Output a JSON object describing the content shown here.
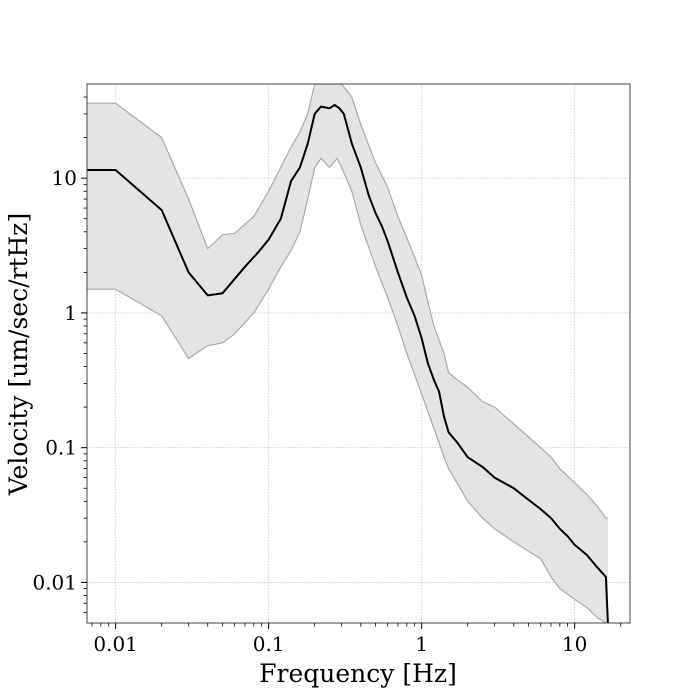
{
  "chart_data": {
    "type": "line",
    "xlabel": "Frequency [Hz]",
    "ylabel": "Velocity [um/sec/rtHz]",
    "xscale": "log",
    "yscale": "log",
    "xlim": [
      0.0065,
      23
    ],
    "ylim": [
      0.005,
      50
    ],
    "grid": true,
    "x_ticks": [
      {
        "value": 0.01,
        "label": "0.01"
      },
      {
        "value": 0.1,
        "label": "0.1"
      },
      {
        "value": 1,
        "label": "1"
      },
      {
        "value": 10,
        "label": "10"
      }
    ],
    "y_ticks": [
      {
        "value": 0.01,
        "label": "0.01"
      },
      {
        "value": 0.1,
        "label": "0.1"
      },
      {
        "value": 1,
        "label": "1"
      },
      {
        "value": 10,
        "label": "10"
      }
    ],
    "colors": {
      "median_line": "#000000",
      "band_fill": "#e4e4e4",
      "band_edge": "#aaaaaa"
    },
    "series": [
      {
        "role": "median",
        "x": [
          0.0065,
          0.01,
          0.02,
          0.03,
          0.04,
          0.05,
          0.07,
          0.085,
          0.1,
          0.12,
          0.14,
          0.16,
          0.18,
          0.2,
          0.22,
          0.25,
          0.27,
          0.29,
          0.31,
          0.35,
          0.4,
          0.45,
          0.5,
          0.55,
          0.6,
          0.7,
          0.8,
          0.9,
          1.0,
          1.1,
          1.2,
          1.3,
          1.4,
          1.5,
          1.7,
          2.0,
          2.5,
          3.0,
          4.0,
          5.0,
          6.0,
          7.0,
          8.0,
          9.0,
          10.0,
          12.0,
          14.0,
          16.0,
          16.5
        ],
        "y": [
          11.5,
          11.5,
          5.8,
          2.0,
          1.35,
          1.4,
          2.2,
          2.8,
          3.5,
          5.0,
          9.5,
          12.0,
          18.0,
          30.0,
          34.0,
          33.0,
          35.0,
          33.0,
          30.0,
          18.0,
          12.0,
          7.5,
          5.5,
          4.4,
          3.4,
          2.0,
          1.3,
          0.95,
          0.65,
          0.42,
          0.32,
          0.26,
          0.17,
          0.13,
          0.11,
          0.085,
          0.072,
          0.06,
          0.05,
          0.041,
          0.035,
          0.03,
          0.025,
          0.022,
          0.019,
          0.016,
          0.013,
          0.011,
          0.005
        ]
      },
      {
        "role": "upper-bound",
        "x": [
          0.0065,
          0.01,
          0.02,
          0.03,
          0.04,
          0.05,
          0.06,
          0.08,
          0.1,
          0.12,
          0.14,
          0.16,
          0.18,
          0.2,
          0.25,
          0.28,
          0.3,
          0.35,
          0.4,
          0.5,
          0.6,
          0.7,
          0.8,
          0.9,
          1.0,
          1.2,
          1.4,
          1.5,
          1.7,
          2.0,
          2.5,
          3.0,
          4.0,
          5.0,
          6.0,
          7.0,
          8.0,
          10.0,
          12.0,
          14.0,
          16.0,
          16.5
        ],
        "y": [
          36.0,
          36.0,
          20.0,
          7.0,
          3.0,
          3.8,
          3.9,
          5.2,
          8.0,
          12.0,
          17.0,
          22.0,
          30.0,
          50.0,
          50.0,
          50.0,
          50.0,
          40.0,
          25.0,
          13.0,
          8.5,
          5.2,
          3.6,
          2.6,
          1.9,
          0.8,
          0.5,
          0.36,
          0.32,
          0.28,
          0.22,
          0.2,
          0.15,
          0.12,
          0.1,
          0.085,
          0.07,
          0.055,
          0.045,
          0.037,
          0.03,
          0.03
        ]
      },
      {
        "role": "lower-bound",
        "x": [
          0.0065,
          0.01,
          0.02,
          0.03,
          0.04,
          0.05,
          0.06,
          0.08,
          0.1,
          0.12,
          0.14,
          0.16,
          0.18,
          0.2,
          0.22,
          0.25,
          0.28,
          0.3,
          0.35,
          0.4,
          0.5,
          0.6,
          0.7,
          0.8,
          0.9,
          1.0,
          1.2,
          1.4,
          1.5,
          1.7,
          2.0,
          2.5,
          3.0,
          4.0,
          5.0,
          6.0,
          7.0,
          8.0,
          10.0,
          12.0,
          14.0,
          16.0,
          16.5
        ],
        "y": [
          1.5,
          1.5,
          0.95,
          0.46,
          0.57,
          0.6,
          0.7,
          1.0,
          1.5,
          2.2,
          2.9,
          4.0,
          7.0,
          12.0,
          14.0,
          12.0,
          14.0,
          12.0,
          8.0,
          4.5,
          2.2,
          1.3,
          0.8,
          0.5,
          0.35,
          0.25,
          0.14,
          0.085,
          0.07,
          0.055,
          0.04,
          0.03,
          0.025,
          0.02,
          0.017,
          0.015,
          0.011,
          0.009,
          0.0075,
          0.0065,
          0.0055,
          0.005,
          0.005
        ]
      }
    ]
  }
}
